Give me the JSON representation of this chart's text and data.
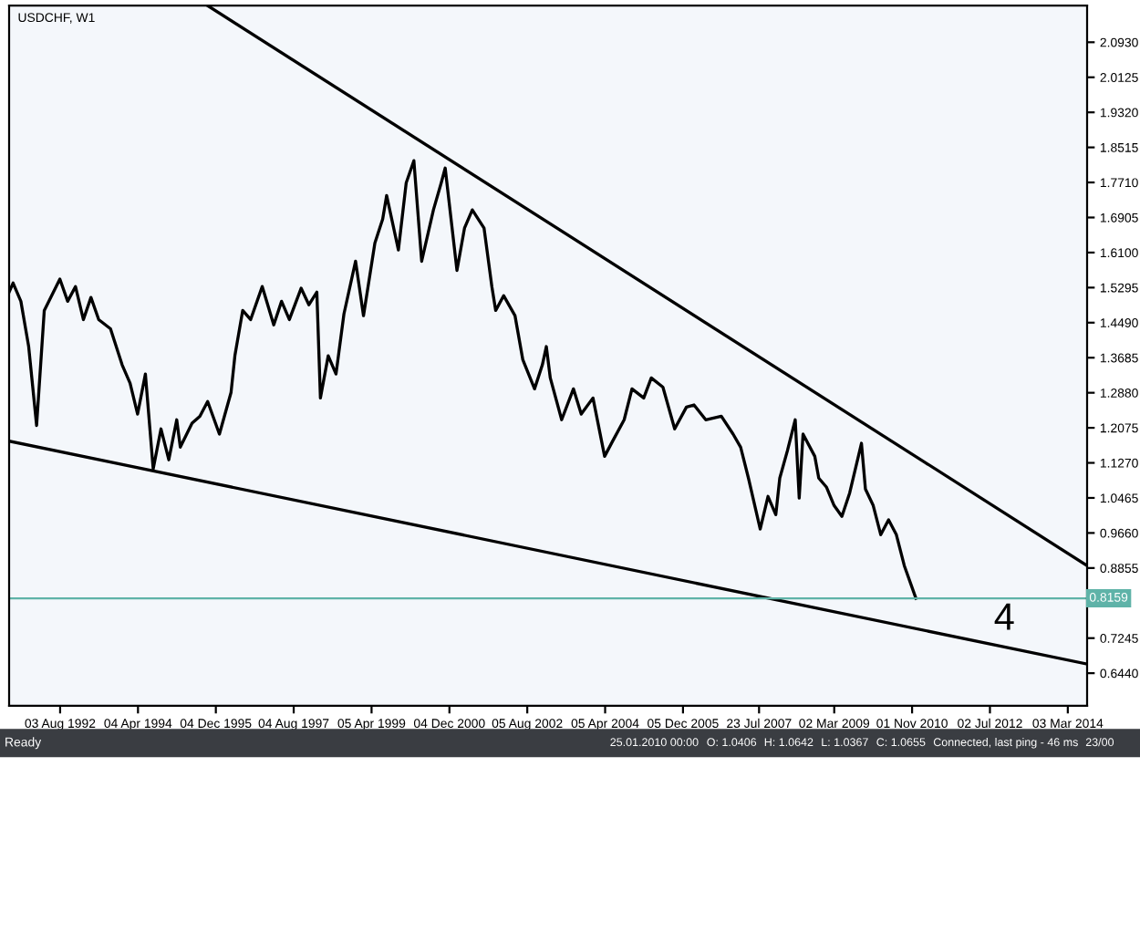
{
  "chart_data": {
    "type": "line",
    "title": "USDCHF, W1",
    "xlim": [
      "1991-07",
      "2014-08"
    ],
    "ylim": [
      0.569,
      2.177
    ],
    "xticks": [
      {
        "value": "1992-08-03",
        "label": "03 Aug 1992"
      },
      {
        "value": "1994-04-04",
        "label": "04 Apr 1994"
      },
      {
        "value": "1995-12-04",
        "label": "04 Dec 1995"
      },
      {
        "value": "1997-08-04",
        "label": "04 Aug 1997"
      },
      {
        "value": "1999-04-05",
        "label": "05 Apr 1999"
      },
      {
        "value": "2000-12-04",
        "label": "04 Dec 2000"
      },
      {
        "value": "2002-08-05",
        "label": "05 Aug 2002"
      },
      {
        "value": "2004-04-05",
        "label": "05 Apr 2004"
      },
      {
        "value": "2005-12-05",
        "label": "05 Dec 2005"
      },
      {
        "value": "2007-07-23",
        "label": "23 Jul 2007"
      },
      {
        "value": "2009-03-02",
        "label": "02 Mar 2009"
      },
      {
        "value": "2010-11-01",
        "label": "01 Nov 2010"
      },
      {
        "value": "2012-07-02",
        "label": "02 Jul 2012"
      },
      {
        "value": "2014-03-03",
        "label": "03 Mar 2014"
      }
    ],
    "yticks": [
      {
        "value": 2.093,
        "label": "2.0930"
      },
      {
        "value": 2.0125,
        "label": "2.0125"
      },
      {
        "value": 1.932,
        "label": "1.9320"
      },
      {
        "value": 1.8515,
        "label": "1.8515"
      },
      {
        "value": 1.771,
        "label": "1.7710"
      },
      {
        "value": 1.6905,
        "label": "1.6905"
      },
      {
        "value": 1.61,
        "label": "1.6100"
      },
      {
        "value": 1.5295,
        "label": "1.5295"
      },
      {
        "value": 1.449,
        "label": "1.4490"
      },
      {
        "value": 1.3685,
        "label": "1.3685"
      },
      {
        "value": 1.288,
        "label": "1.2880"
      },
      {
        "value": 1.2075,
        "label": "1.2075"
      },
      {
        "value": 1.127,
        "label": "1.1270"
      },
      {
        "value": 1.0465,
        "label": "1.0465"
      },
      {
        "value": 0.966,
        "label": "0.9660"
      },
      {
        "value": 0.8855,
        "label": "0.8855"
      },
      {
        "value": 0.7245,
        "label": "0.7245"
      },
      {
        "value": 0.644,
        "label": "0.6440"
      }
    ],
    "grid": false,
    "legend": false,
    "series": [
      {
        "color": "#000000",
        "x": [
          "1991-07",
          "1991-08",
          "1991-10",
          "1991-12",
          "1992-02",
          "1992-04",
          "1992-08",
          "1992-10",
          "1992-12",
          "1993-02",
          "1993-04",
          "1993-06",
          "1993-09",
          "1993-12",
          "1994-02",
          "1994-04",
          "1994-06",
          "1994-08",
          "1994-10",
          "1994-12",
          "1995-02",
          "1995-03",
          "1995-06",
          "1995-08",
          "1995-10",
          "1996-01",
          "1996-04",
          "1996-05",
          "1996-07",
          "1996-09",
          "1996-12",
          "1997-03",
          "1997-05",
          "1997-07",
          "1997-10",
          "1997-12",
          "1998-02",
          "1998-03",
          "1998-05",
          "1998-07",
          "1998-09",
          "1998-12",
          "1999-02",
          "1999-05",
          "1999-07",
          "1999-08",
          "1999-11",
          "2000-01",
          "2000-03",
          "2000-05",
          "2000-08",
          "2000-10",
          "2000-11",
          "2001-02",
          "2001-04",
          "2001-06",
          "2001-09",
          "2001-11",
          "2001-12",
          "2002-02",
          "2002-05",
          "2002-07",
          "2002-10",
          "2002-12",
          "2003-01",
          "2003-02",
          "2003-05",
          "2003-08",
          "2003-10",
          "2004-01",
          "2004-04",
          "2004-06",
          "2004-09",
          "2004-11",
          "2005-02",
          "2005-04",
          "2005-07",
          "2005-10",
          "2006-01",
          "2006-03",
          "2006-06",
          "2006-10",
          "2007-01",
          "2007-03",
          "2007-05",
          "2007-08",
          "2007-10",
          "2007-12",
          "2008-01",
          "2008-03",
          "2008-05",
          "2008-06",
          "2008-07",
          "2008-10",
          "2008-11",
          "2009-01",
          "2009-03",
          "2009-05",
          "2009-07",
          "2009-10",
          "2009-11",
          "2010-01",
          "2010-03",
          "2010-05",
          "2010-07",
          "2010-09",
          "2010-12"
        ],
        "values": [
          1.519,
          1.54,
          1.498,
          1.394,
          1.213,
          1.477,
          1.549,
          1.498,
          1.532,
          1.456,
          1.507,
          1.456,
          1.435,
          1.352,
          1.31,
          1.239,
          1.331,
          1.113,
          1.205,
          1.134,
          1.226,
          1.163,
          1.218,
          1.234,
          1.268,
          1.193,
          1.289,
          1.373,
          1.477,
          1.456,
          1.532,
          1.444,
          1.498,
          1.456,
          1.528,
          1.49,
          1.519,
          1.276,
          1.373,
          1.331,
          1.469,
          1.59,
          1.465,
          1.632,
          1.687,
          1.741,
          1.616,
          1.77,
          1.821,
          1.59,
          1.708,
          1.77,
          1.804,
          1.569,
          1.666,
          1.708,
          1.666,
          1.532,
          1.477,
          1.511,
          1.465,
          1.364,
          1.297,
          1.352,
          1.394,
          1.322,
          1.226,
          1.297,
          1.239,
          1.276,
          1.142,
          1.176,
          1.226,
          1.297,
          1.276,
          1.322,
          1.301,
          1.205,
          1.255,
          1.26,
          1.226,
          1.234,
          1.193,
          1.163,
          1.092,
          0.975,
          1.05,
          1.008,
          1.092,
          1.155,
          1.226,
          1.046,
          1.193,
          1.142,
          1.092,
          1.071,
          1.029,
          1.004,
          1.058,
          1.172,
          1.067,
          1.029,
          0.962,
          0.996,
          0.962,
          0.891,
          0.816
        ]
      },
      {
        "color": "#000000",
        "x": [
          "1995-10",
          "2014-08"
        ],
        "values": [
          2.177,
          0.891
        ]
      },
      {
        "color": "#000000",
        "x": [
          "1991-07",
          "2014-08"
        ],
        "values": [
          1.177,
          0.665
        ]
      }
    ],
    "ref_lines": [
      {
        "axis": "y",
        "value": 0.8159,
        "label": "0.8159",
        "color": "#5fb3a8"
      }
    ],
    "annotations": [
      {
        "text": "4",
        "x": "2012-08",
        "y": 0.807
      },
      "Ready",
      "25.01.2010 00:00",
      "O: 1.0406",
      "H: 1.0642",
      "L: 1.0367",
      "C: 1.0655",
      "Connected, last ping - 46 ms",
      "23/00"
    ]
  }
}
